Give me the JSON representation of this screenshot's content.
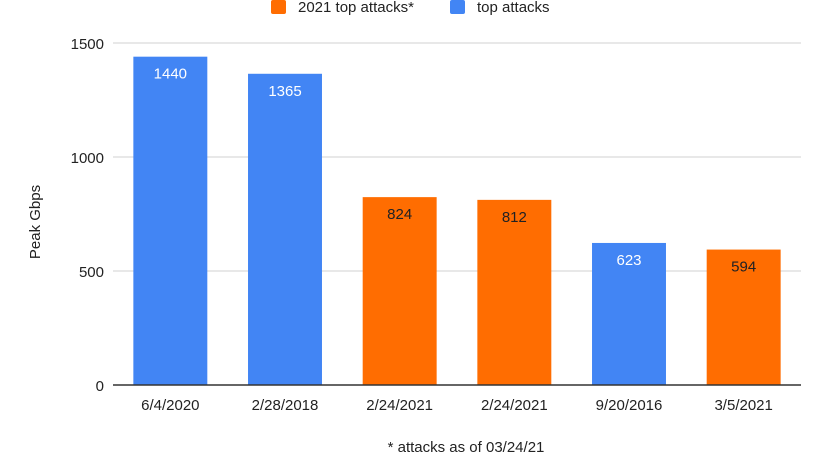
{
  "chart_data": {
    "type": "bar",
    "categories": [
      "6/4/2020",
      "2/28/2018",
      "2/24/2021",
      "2/24/2021",
      "9/20/2016",
      "3/5/2021"
    ],
    "values": [
      1440,
      1365,
      824,
      812,
      623,
      594
    ],
    "data_labels": [
      "1440",
      "1365",
      "824",
      "812",
      "623",
      "594"
    ],
    "series_membership": [
      "top attacks",
      "top attacks",
      "2021 top attacks*",
      "2021 top attacks*",
      "top attacks",
      "2021 top attacks*"
    ],
    "legend": [
      {
        "name": "2021 top attacks*",
        "color": "#FF6D01"
      },
      {
        "name": "top attacks",
        "color": "#4285F4"
      }
    ],
    "legend_position": "top",
    "title": "",
    "xlabel": "",
    "ylabel": "Peak Gbps",
    "footnote": "* attacks as of 03/24/21",
    "ylim": [
      0,
      1500
    ],
    "yticks": [
      0,
      500,
      1000,
      1500
    ],
    "grid": true,
    "colors": {
      "orange": "#FF6D01",
      "blue": "#4285F4",
      "label_on_blue": "#FFFFFF",
      "label_on_orange": "#202124",
      "gridline": "#D9D9D9",
      "axis": "#333333"
    }
  }
}
